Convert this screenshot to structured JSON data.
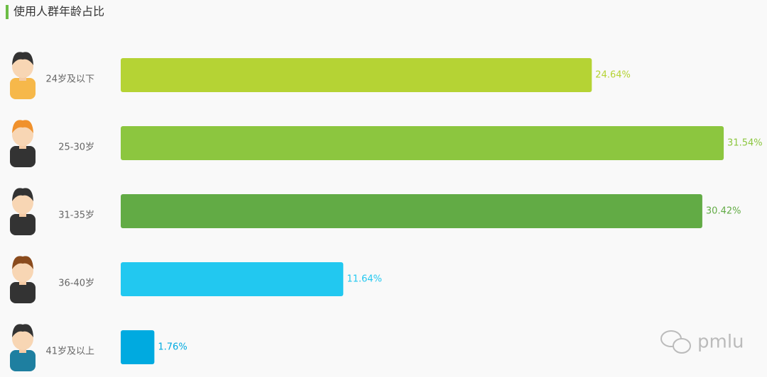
{
  "chart_data": {
    "type": "bar",
    "orientation": "horizontal",
    "title": "使用人群年龄占比",
    "categories": [
      "24岁及以下",
      "25-30岁",
      "31-35岁",
      "36-40岁",
      "41岁及以上"
    ],
    "values": [
      24.64,
      31.54,
      30.42,
      11.64,
      1.76
    ],
    "value_labels": [
      "24.64%",
      "31.54%",
      "30.42%",
      "11.64%",
      "1.76%"
    ],
    "colors": [
      "#b5d334",
      "#8cc63f",
      "#62ab45",
      "#22c8f0",
      "#00aae0"
    ],
    "watermark": "pmlu"
  }
}
